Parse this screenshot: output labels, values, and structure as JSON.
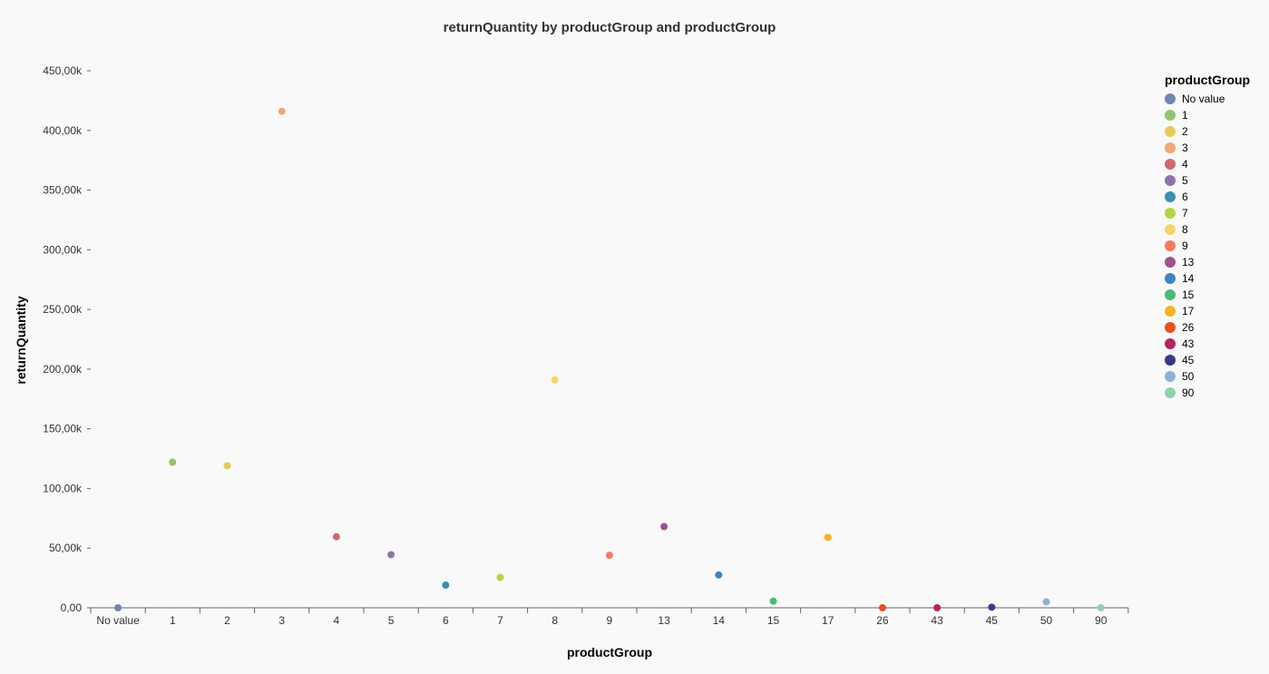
{
  "chart_data": {
    "type": "scatter",
    "title": "returnQuantity by productGroup and productGroup",
    "xlabel": "productGroup",
    "ylabel": "returnQuantity",
    "categories": [
      "No value",
      "1",
      "2",
      "3",
      "4",
      "5",
      "6",
      "7",
      "8",
      "9",
      "13",
      "14",
      "15",
      "17",
      "26",
      "43",
      "45",
      "50",
      "90"
    ],
    "values": [
      0,
      122000,
      119000,
      416000,
      59500,
      44500,
      19000,
      25500,
      191000,
      44000,
      68000,
      27500,
      5500,
      59000,
      0,
      0,
      500,
      5000,
      0
    ],
    "ylim": [
      0,
      450000
    ],
    "yticks": [
      0,
      50000,
      100000,
      150000,
      200000,
      250000,
      300000,
      350000,
      400000,
      450000
    ],
    "ytick_labels": [
      "0,00",
      "50,00k",
      "100,00k",
      "150,00k",
      "200,00k",
      "250,00k",
      "300,00k",
      "350,00k",
      "400,00k",
      "450,00k"
    ],
    "grid": false,
    "legend": {
      "title": "productGroup",
      "placement": "right",
      "entries": [
        "No value",
        "1",
        "2",
        "3",
        "4",
        "5",
        "6",
        "7",
        "8",
        "9",
        "13",
        "14",
        "15",
        "17",
        "26",
        "43",
        "45",
        "50",
        "90"
      ]
    },
    "colors": [
      "#6f87b0",
      "#94c272",
      "#e8cb5b",
      "#f3a774",
      "#d2666d",
      "#8e73a8",
      "#3a8fb5",
      "#b2d545",
      "#f8d36b",
      "#f47b5e",
      "#a0508c",
      "#3e85c1",
      "#4dba74",
      "#fbb21f",
      "#e8501c",
      "#b52465",
      "#3b3887",
      "#8eb2d6",
      "#8fd3a8"
    ]
  }
}
